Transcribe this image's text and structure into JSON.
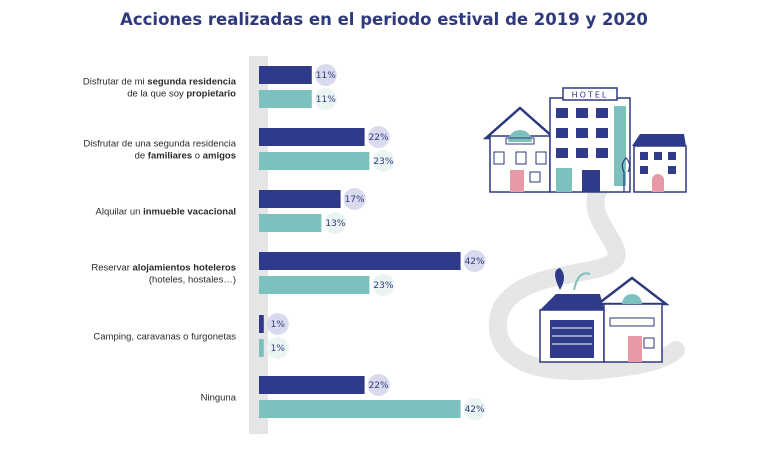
{
  "chart_data": {
    "type": "bar",
    "orientation": "horizontal",
    "title": "Acciones realizadas en el periodo estival de 2019 y 2020",
    "xlabel": "",
    "ylabel": "",
    "xlim": [
      0,
      45
    ],
    "grid": false,
    "legend": "none",
    "categories": [
      [
        {
          "t": "Disfrutar de mi "
        },
        {
          "t": "segunda residencia",
          "b": true
        },
        {
          "t": "|"
        },
        {
          "t": "de la que soy "
        },
        {
          "t": "propietario",
          "b": true
        }
      ],
      [
        {
          "t": "Disfrutar de una segunda residencia"
        },
        {
          "t": "|"
        },
        {
          "t": "de "
        },
        {
          "t": "familiares",
          "b": true
        },
        {
          "t": " o "
        },
        {
          "t": "amigos",
          "b": true
        }
      ],
      [
        {
          "t": "Alquilar un "
        },
        {
          "t": "inmueble vacacional",
          "b": true
        }
      ],
      [
        {
          "t": "Reservar "
        },
        {
          "t": "alojamientos hoteleros",
          "b": true
        },
        {
          "t": "|"
        },
        {
          "t": "(hoteles, hostales…)"
        }
      ],
      [
        {
          "t": "Camping, caravanas o furgonetas"
        }
      ],
      [
        {
          "t": "Ninguna"
        }
      ]
    ],
    "series": [
      {
        "values": [
          11,
          22,
          17,
          42,
          1,
          22
        ],
        "labels": [
          "11%",
          "22%",
          "17%",
          "42%",
          "1%",
          "22%"
        ],
        "color": "#2f3a8a"
      },
      {
        "values": [
          11,
          23,
          13,
          23,
          1,
          42
        ],
        "labels": [
          "11%",
          "23%",
          "13%",
          "23%",
          "1%",
          "42%"
        ],
        "color": "#7cc1bd"
      }
    ]
  },
  "colors": {
    "title": "#2f3a7d",
    "axis_band": "#e5e5e8",
    "value_badge_dark": "#d9daee",
    "value_badge_light": "#eaf4f3"
  },
  "illustration": "houses-and-hotel-illustration"
}
